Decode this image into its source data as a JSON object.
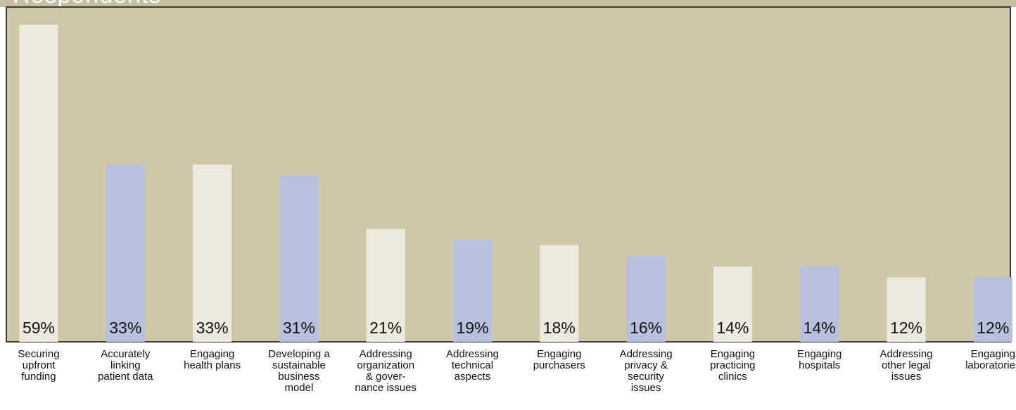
{
  "title": "Respondents",
  "colors": {
    "plot_background": "#cfc7a9",
    "plot_border": "#3a3a3a",
    "bar_light": "#ede9dd",
    "bar_blue": "#b7c1dd"
  },
  "chart_data": {
    "type": "bar",
    "title": "Respondents",
    "xlabel": "",
    "ylabel": "",
    "ylim": [
      0,
      63
    ],
    "grid": false,
    "categories": [
      "Securing upfront funding",
      "Accurately linking patient data",
      "Engaging health plans",
      "Developing a sustainable business model",
      "Addressing organization & gover-nance issues",
      "Addressing technical aspects",
      "Engaging purchasers",
      "Addressing privacy & security issues",
      "Engaging practicing clinics",
      "Engaging hospitals",
      "Addressing other legal issues",
      "Engaging laboratories"
    ],
    "category_lines": [
      [
        "Securing",
        "upfront",
        "funding"
      ],
      [
        "Accurately",
        "linking",
        "patient data"
      ],
      [
        "Engaging",
        "health plans"
      ],
      [
        "Developing a",
        "sustainable",
        "business",
        "model"
      ],
      [
        "Addressing",
        "organization",
        "& gover-",
        "nance issues"
      ],
      [
        "Addressing",
        "technical",
        "aspects"
      ],
      [
        "Engaging",
        "purchasers"
      ],
      [
        "Addressing",
        "privacy &",
        "security",
        "issues"
      ],
      [
        "Engaging",
        "practicing",
        "clinics"
      ],
      [
        "Engaging",
        "hospitals"
      ],
      [
        "Addressing",
        "other legal",
        "issues"
      ],
      [
        "Engaging",
        "laboratories"
      ]
    ],
    "values": [
      59,
      33,
      33,
      31,
      21,
      19,
      18,
      16,
      14,
      14,
      12,
      12
    ],
    "labels": [
      "59%",
      "33%",
      "33%",
      "31%",
      "21%",
      "19%",
      "18%",
      "16%",
      "14%",
      "14%",
      "12%",
      "12%"
    ],
    "bar_colors": [
      "#ede9dd",
      "#b7c1dd",
      "#ede9dd",
      "#b7c1dd",
      "#ede9dd",
      "#b7c1dd",
      "#ede9dd",
      "#b7c1dd",
      "#ede9dd",
      "#b7c1dd",
      "#ede9dd",
      "#b7c1dd"
    ]
  }
}
